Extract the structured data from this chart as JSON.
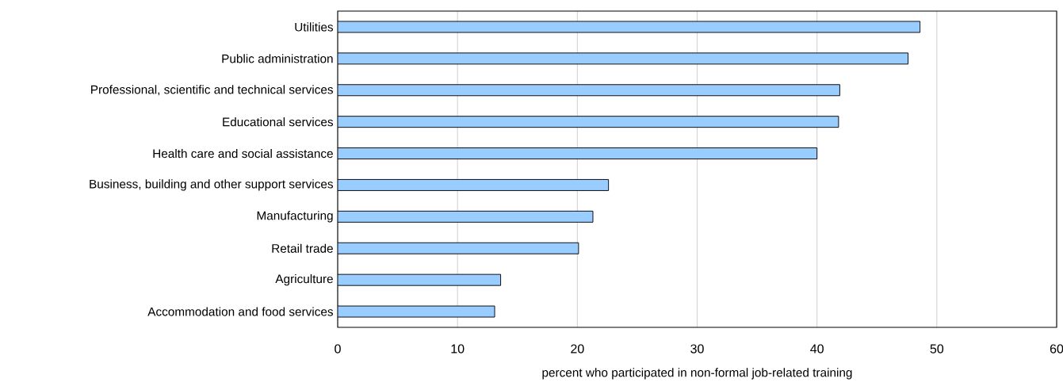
{
  "chart_data": {
    "type": "bar",
    "orientation": "horizontal",
    "xlabel": "percent who participated in non-formal job-related training",
    "categories": [
      "Utilities",
      "Public administration",
      "Professional, scientific and technical services",
      "Educational services",
      "Health care and social assistance",
      "Business, building and other support services",
      "Manufacturing",
      "Retail trade",
      "Agriculture",
      "Accommodation and food services"
    ],
    "values": [
      48.6,
      47.6,
      41.9,
      41.8,
      40.0,
      22.6,
      21.3,
      20.1,
      13.6,
      13.1
    ],
    "color": "#99ccff",
    "xlim": [
      0,
      60
    ],
    "xticks": [
      0,
      10,
      20,
      30,
      40,
      50,
      60
    ],
    "grid": "x"
  }
}
